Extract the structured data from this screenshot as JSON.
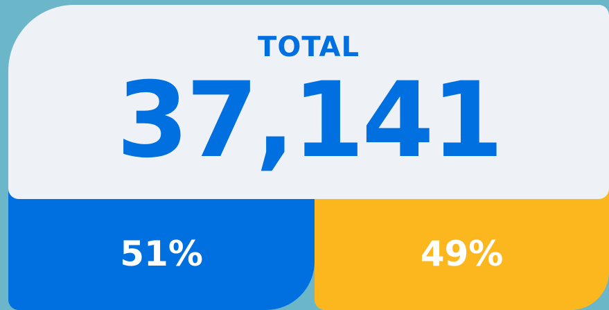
{
  "title": "TOTAL",
  "total": "37,141",
  "segments": [
    {
      "value": 51,
      "label": "51%",
      "color": "#0070e0"
    },
    {
      "value": 49,
      "label": "49%",
      "color": "#fdb71e"
    }
  ]
}
